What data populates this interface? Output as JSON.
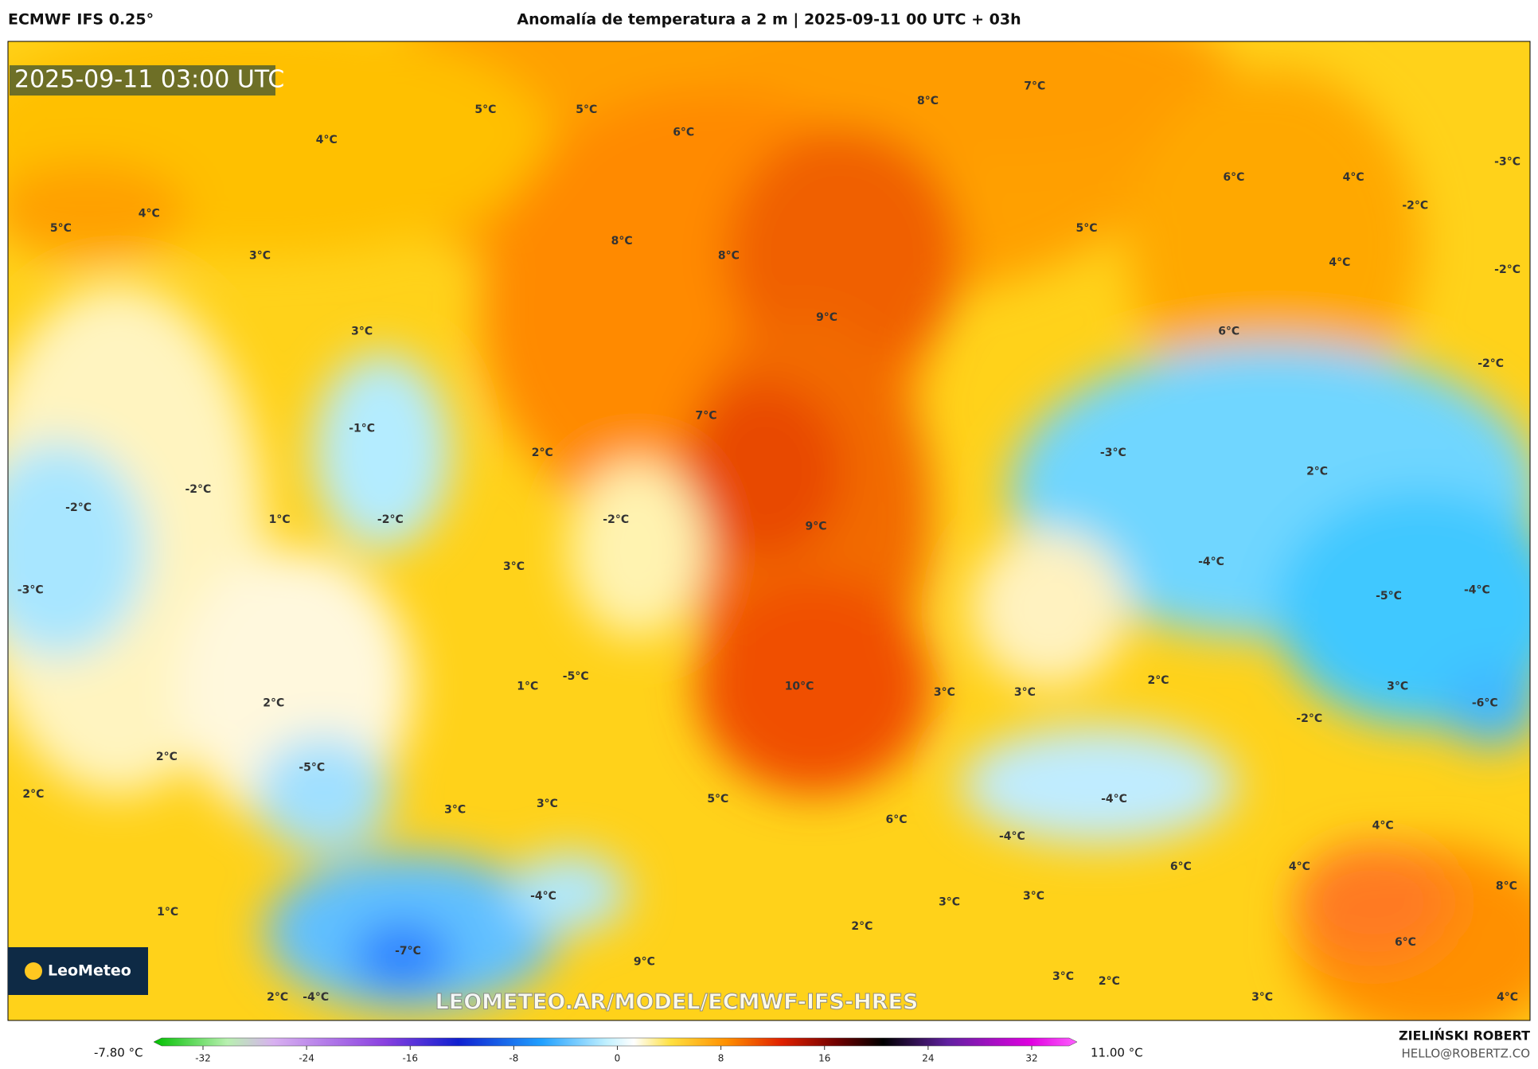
{
  "header": {
    "model": "ECMWF IFS 0.25°",
    "title": "Anomalía de temperatura a 2 m | 2025-09-11 00 UTC + 03h"
  },
  "map": {
    "timestamp": "2025-09-11 03:00 UTC",
    "watermark": "LEOMETEO.AR/MODEL/ECMWF-IFS-HRES",
    "contour_labels": [
      "4°C",
      "5°C",
      "5°C",
      "6°C",
      "8°C",
      "7°C",
      "4°C",
      "5°C",
      "3°C",
      "8°C",
      "8°C",
      "3°C",
      "9°C",
      "6°C",
      "4°C",
      "-3°C",
      "-2°C",
      "5°C",
      "4°C",
      "-2°C",
      "6°C",
      "-2°C",
      "-1°C",
      "7°C",
      "2°C",
      "-3°C",
      "2°C",
      "-2°C",
      "-2°C",
      "1°C",
      "-2°C",
      "-2°C",
      "9°C",
      "3°C",
      "-4°C",
      "-3°C",
      "-5°C",
      "-4°C",
      "2°C",
      "3°C",
      "1°C",
      "-5°C",
      "10°C",
      "3°C",
      "3°C",
      "2°C",
      "-6°C",
      "-2°C",
      "2°C",
      "-5°C",
      "2°C",
      "3°C",
      "3°C",
      "5°C",
      "6°C",
      "-4°C",
      "4°C",
      "-4°C",
      "6°C",
      "4°C",
      "-4°C",
      "3°C",
      "3°C",
      "8°C",
      "1°C",
      "2°C",
      "-7°C",
      "9°C",
      "6°C",
      "3°C",
      "2°C",
      "2°C",
      "-4°C",
      "3°C",
      "4°C"
    ]
  },
  "logo": {
    "text": "LeoMeteo"
  },
  "colorbar": {
    "min_label": "-7.80 °C",
    "max_label": "11.00 °C",
    "lim": [
      -32,
      32
    ],
    "ticks": [
      -32,
      -24,
      -16,
      -8,
      0,
      8,
      16,
      24,
      32
    ]
  },
  "footer": {
    "author": "ZIELIŃSKI ROBERT",
    "email": "HELLO@ROBERTZ.CO"
  }
}
